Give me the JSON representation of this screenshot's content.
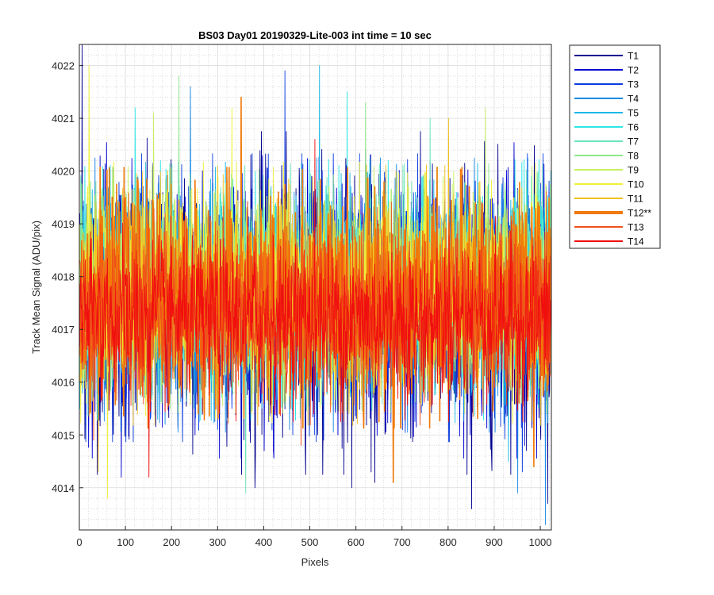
{
  "chart_data": {
    "type": "line",
    "title": "BS03 Day01 20190329-Lite-003 int time = 10 sec",
    "xlabel": "Pixels",
    "ylabel": "Track Mean Signal (ADU/pix)",
    "xlim": [
      0,
      1024
    ],
    "ylim": [
      4013.2,
      4022.4
    ],
    "xticks": [
      0,
      100,
      200,
      300,
      400,
      500,
      600,
      700,
      800,
      900,
      1000
    ],
    "yticks": [
      4014,
      4015,
      4016,
      4017,
      4018,
      4019,
      4020,
      4021,
      4022
    ],
    "grid": true,
    "minor_grid": true,
    "legend_position": "outside-right",
    "n_points": 1024,
    "series": [
      {
        "name": "T1",
        "color": "#00008f",
        "bold": false,
        "mean": 4017.5,
        "spread": 1.25,
        "extremes": [
          [
            5,
            4022.4
          ],
          [
            380,
            4014.0
          ],
          [
            590,
            4014.0
          ],
          [
            640,
            4014.1
          ],
          [
            850,
            4013.6
          ],
          [
            1015,
            4013.7
          ]
        ]
      },
      {
        "name": "T2",
        "color": "#0000d0",
        "bold": false,
        "mean": 4017.55,
        "spread": 1.15,
        "extremes": [
          [
            90,
            4014.2
          ],
          [
            250,
            4015.0
          ],
          [
            420,
            4014.7
          ],
          [
            560,
            4015.0
          ]
        ]
      },
      {
        "name": "T3",
        "color": "#0c3ddf",
        "bold": false,
        "mean": 4017.6,
        "spread": 1.05,
        "extremes": [
          [
            445,
            4021.9
          ],
          [
            700,
            4015.1
          ],
          [
            960,
            4014.3
          ]
        ]
      },
      {
        "name": "T4",
        "color": "#1a8ae6",
        "bold": false,
        "mean": 4017.65,
        "spread": 1.0,
        "extremes": [
          [
            240,
            4021.6
          ],
          [
            950,
            4013.9
          ],
          [
            1010,
            4013.3
          ]
        ]
      },
      {
        "name": "T5",
        "color": "#1ab8e6",
        "bold": false,
        "mean": 4017.7,
        "spread": 0.95,
        "extremes": [
          [
            520,
            4022.0
          ],
          [
            930,
            4014.5
          ]
        ]
      },
      {
        "name": "T6",
        "color": "#29e6e6",
        "bold": false,
        "mean": 4017.75,
        "spread": 0.95,
        "extremes": [
          [
            120,
            4021.2
          ],
          [
            580,
            4021.5
          ]
        ]
      },
      {
        "name": "T7",
        "color": "#6be6b8",
        "bold": false,
        "mean": 4017.8,
        "spread": 0.9,
        "extremes": [
          [
            360,
            4013.9
          ],
          [
            760,
            4021.0
          ]
        ]
      },
      {
        "name": "T8",
        "color": "#8ee68a",
        "bold": false,
        "mean": 4017.8,
        "spread": 0.9,
        "extremes": [
          [
            215,
            4021.8
          ],
          [
            620,
            4021.3
          ]
        ]
      },
      {
        "name": "T9",
        "color": "#c5f060",
        "bold": false,
        "mean": 4017.75,
        "spread": 0.9,
        "extremes": [
          [
            160,
            4021.1
          ],
          [
            880,
            4021.2
          ]
        ]
      },
      {
        "name": "T10",
        "color": "#f0f03a",
        "bold": false,
        "mean": 4017.7,
        "spread": 0.95,
        "extremes": [
          [
            20,
            4022.0
          ],
          [
            60,
            4013.8
          ],
          [
            330,
            4021.2
          ]
        ]
      },
      {
        "name": "T11",
        "color": "#f0c020",
        "bold": false,
        "mean": 4017.65,
        "spread": 0.95,
        "extremes": [
          [
            40,
            4014.3
          ],
          [
            800,
            4021.0
          ]
        ]
      },
      {
        "name": "T12**",
        "color": "#f07a0a",
        "bold": true,
        "mean": 4017.6,
        "spread": 0.95,
        "extremes": [
          [
            350,
            4021.4
          ],
          [
            680,
            4014.1
          ],
          [
            985,
            4014.4
          ]
        ]
      },
      {
        "name": "T13",
        "color": "#f04f1a",
        "bold": false,
        "mean": 4017.4,
        "spread": 0.85,
        "extremes": [
          [
            30,
            4014.9
          ],
          [
            480,
            4014.8
          ]
        ]
      },
      {
        "name": "T14",
        "color": "#f00f0f",
        "bold": false,
        "mean": 4017.2,
        "spread": 0.75,
        "extremes": [
          [
            150,
            4014.2
          ],
          [
            510,
            4020.6
          ]
        ]
      }
    ]
  }
}
